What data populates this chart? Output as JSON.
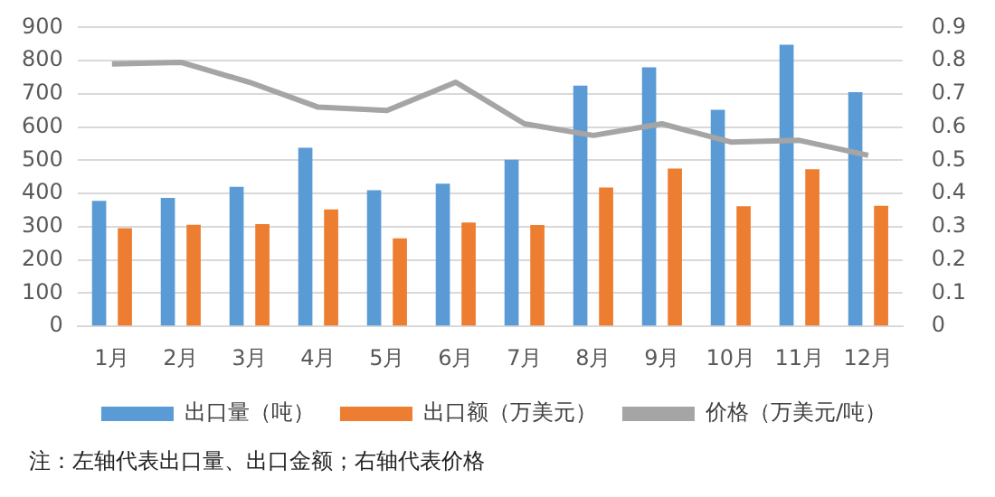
{
  "chart_data": {
    "type": "bar",
    "categories": [
      "1月",
      "2月",
      "3月",
      "4月",
      "5月",
      "6月",
      "7月",
      "8月",
      "9月",
      "10月",
      "11月",
      "12月"
    ],
    "series": [
      {
        "name": "出口量（吨）",
        "color": "#5b9bd5",
        "values": [
          378,
          387,
          420,
          538,
          410,
          430,
          502,
          725,
          780,
          652,
          848,
          705
        ]
      },
      {
        "name": "出口额（万美元）",
        "color": "#ed7d31",
        "values": [
          296,
          306,
          308,
          352,
          265,
          313,
          305,
          418,
          475,
          362,
          473,
          363
        ]
      },
      {
        "name": "价格（万美元/吨）",
        "type": "line",
        "axis": "y2",
        "color": "#a5a5a5",
        "marker": "none",
        "values": [
          0.79,
          0.795,
          0.735,
          0.66,
          0.65,
          0.735,
          0.61,
          0.575,
          0.61,
          0.555,
          0.56,
          0.515
        ]
      }
    ],
    "ylim": [
      0,
      900
    ],
    "yticks": [
      0,
      100,
      200,
      300,
      400,
      500,
      600,
      700,
      800,
      900
    ],
    "y2lim": [
      0,
      0.9
    ],
    "y2ticks": [
      0,
      0.1,
      0.2,
      0.3,
      0.4,
      0.5,
      0.6,
      0.7,
      0.8,
      0.9
    ],
    "grid": "y",
    "legend": "bottom",
    "annotations": [
      "注：左轴代表出口量、出口金额；右轴代表价格"
    ]
  }
}
